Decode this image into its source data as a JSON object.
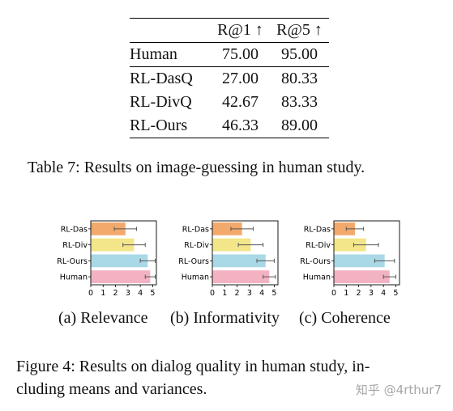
{
  "table": {
    "headers": [
      "",
      "R@1 ↑",
      "R@5 ↑"
    ],
    "rows": [
      [
        "Human",
        "75.00",
        "95.00"
      ],
      [
        "RL-DasQ",
        "27.00",
        "80.33"
      ],
      [
        "RL-DivQ",
        "42.67",
        "83.33"
      ],
      [
        "RL-Ours",
        "46.33",
        "89.00"
      ]
    ],
    "caption": "Table 7: Results on image-guessing in human study."
  },
  "figure": {
    "caption_line1": "Figure 4: Results on dialog quality in human study, in-",
    "caption_line2": "cluding means and variances."
  },
  "watermark": "知乎 @4rthur7",
  "chart_data": [
    {
      "type": "bar",
      "orientation": "horizontal",
      "subcaption": "(a) Relevance",
      "categories": [
        "RL-Das",
        "RL-Div",
        "RL-Ours",
        "Human"
      ],
      "values": [
        2.8,
        3.5,
        4.6,
        4.8
      ],
      "errors": [
        0.9,
        0.9,
        0.6,
        0.4
      ],
      "colors": [
        "#f2a96b",
        "#f2e58a",
        "#a9d8e6",
        "#f3b2c2"
      ],
      "xticks": [
        "0",
        "1",
        "2",
        "3",
        "4",
        "5"
      ],
      "xlim": [
        0,
        5.3
      ]
    },
    {
      "type": "bar",
      "orientation": "horizontal",
      "subcaption": "(b) Informativity",
      "categories": [
        "RL-Das",
        "RL-Div",
        "RL-Ours",
        "Human"
      ],
      "values": [
        2.4,
        3.1,
        4.3,
        4.6
      ],
      "errors": [
        0.9,
        1.0,
        0.7,
        0.5
      ],
      "colors": [
        "#f2a96b",
        "#f2e58a",
        "#a9d8e6",
        "#f3b2c2"
      ],
      "xticks": [
        "0",
        "1",
        "2",
        "3",
        "4",
        "5"
      ],
      "xlim": [
        0,
        5.3
      ]
    },
    {
      "type": "bar",
      "orientation": "horizontal",
      "subcaption": "(c) Coherence",
      "categories": [
        "RL-Das",
        "RL-Div",
        "RL-Ours",
        "Human"
      ],
      "values": [
        1.7,
        2.6,
        4.1,
        4.5
      ],
      "errors": [
        0.7,
        1.0,
        0.8,
        0.5
      ],
      "colors": [
        "#f2a96b",
        "#f2e58a",
        "#a9d8e6",
        "#f3b2c2"
      ],
      "xticks": [
        "0",
        "1",
        "2",
        "3",
        "4",
        "5"
      ],
      "xlim": [
        0,
        5.3
      ]
    }
  ]
}
